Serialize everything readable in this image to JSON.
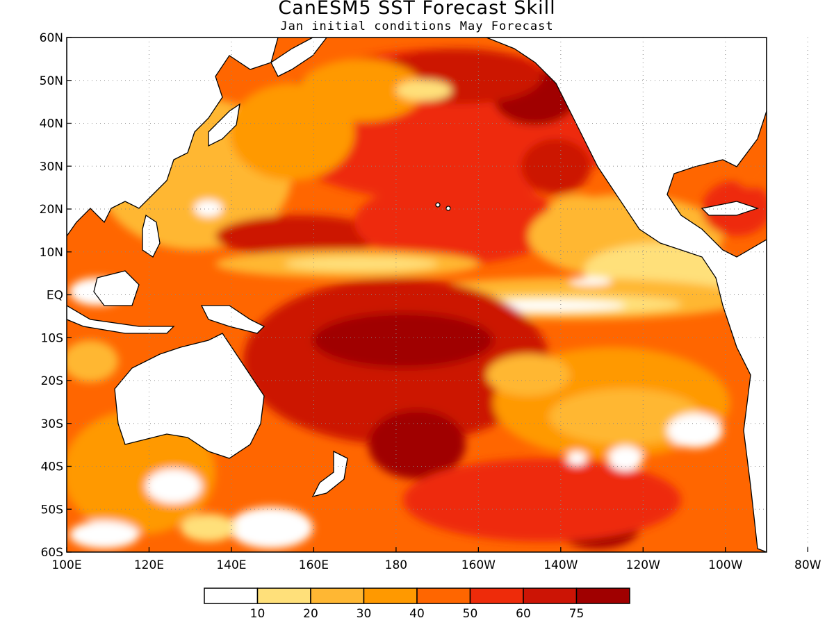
{
  "title": "CanESM5 SST Forecast Skill",
  "subtitle": "Jan initial conditions  May Forecast",
  "lat_labels": [
    "60N",
    "50N",
    "40N",
    "30N",
    "20N",
    "10N",
    "EQ",
    "10S",
    "20S",
    "30S",
    "40S",
    "50S",
    "60S"
  ],
  "lon_labels": [
    "100E",
    "120E",
    "140E",
    "160E",
    "180",
    "160W",
    "140W",
    "120W",
    "100W",
    "80W"
  ],
  "legend": {
    "colors": [
      "#ffffff",
      "#ffe07a",
      "#ffb733",
      "#ff9900",
      "#ff6600",
      "#ee2b0a",
      "#cc1405",
      "#a00000"
    ],
    "labels": [
      "10",
      "20",
      "30",
      "40",
      "50",
      "60",
      "75"
    ]
  },
  "colors": {
    "land": "#ffffff",
    "coast": "#000000",
    "grid": "#888888"
  }
}
